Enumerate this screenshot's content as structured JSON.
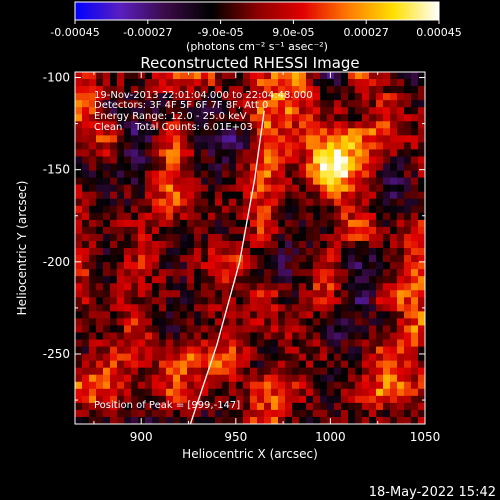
{
  "chart_data": {
    "type": "heatmap",
    "title": "Reconstructed RHESSI Image",
    "xlabel": "Heliocentric X (arcsec)",
    "ylabel": "Heliocentric Y (arcsec)",
    "xlim": [
      865,
      1050
    ],
    "ylim": [
      -288,
      -97
    ],
    "x_ticks": [
      900,
      950,
      1000,
      1050
    ],
    "y_ticks": [
      -100,
      -150,
      -200,
      -250
    ],
    "colorbar": {
      "range": [
        -0.00045,
        0.00045
      ],
      "ticks": [
        "-0.00045",
        "-0.00027",
        "-9.0e-05",
        "9.0e-05",
        "0.00027",
        "0.00045"
      ],
      "unit_label": "(photons cm⁻² s⁻¹ asec⁻²)",
      "colormap": [
        "#0000ff",
        "#5a1fbf",
        "#3a0a46",
        "#000000",
        "#8a0000",
        "#e00000",
        "#ff7a00",
        "#ffe000",
        "#ffffff"
      ]
    },
    "annotations": [
      "19-Nov-2013 22:01:04.000 to 22:04:48.000",
      "Detectors: 3F 4F 5F 6F 7F 8F, Att 0",
      "Energy Range: 12.0 - 25.0 keV",
      "Clean    Total Counts: 6.01E+03"
    ],
    "peak_label": "Position of Peak = [999,-147]",
    "peak": [
      999,
      -147
    ],
    "limb_arc": [
      [
        926,
        -288
      ],
      [
        940,
        -245
      ],
      [
        952,
        -200
      ],
      [
        960,
        -155
      ],
      [
        965,
        -118
      ]
    ]
  },
  "footer": {
    "timestamp": "18-May-2022 15:42"
  }
}
